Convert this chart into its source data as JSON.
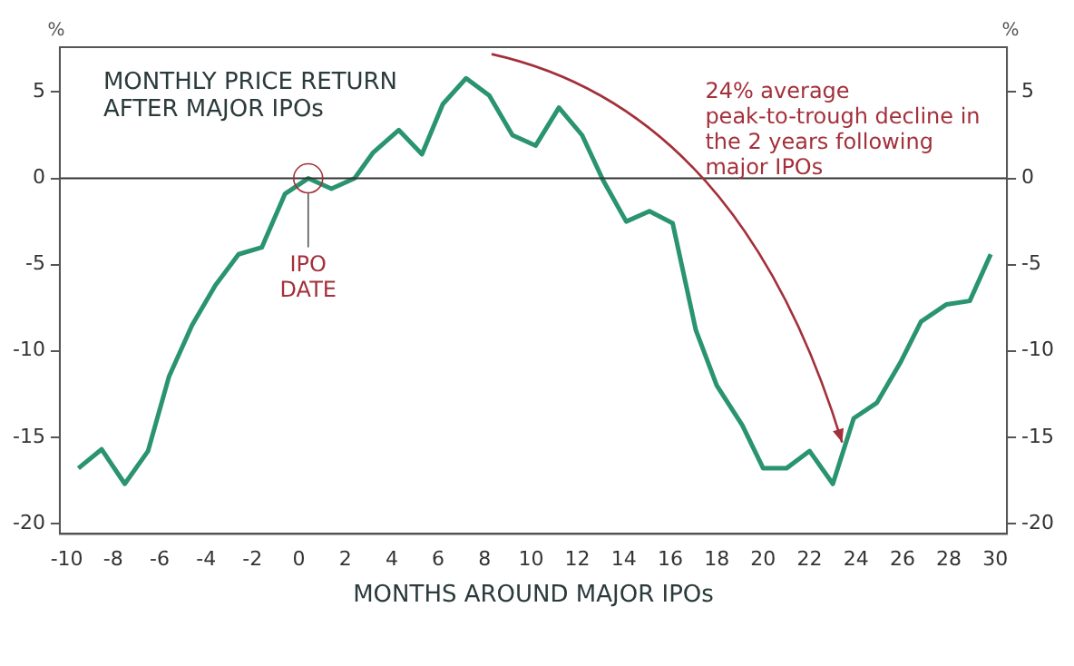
{
  "chart_data": {
    "type": "line",
    "title": "MONTHLY PRICE RETURN AFTER MAJOR IPOs",
    "xlabel": "MONTHS AROUND MAJOR IPOs",
    "ylabel": "%",
    "y2label": "%",
    "x": [
      -9.5,
      -8.5,
      -7.5,
      -6.5,
      -5.6,
      -4.6,
      -3.6,
      -2.6,
      -1.6,
      -0.6,
      0.4,
      1.4,
      2.4,
      3.2,
      4.3,
      5.3,
      6.2,
      7.2,
      8.2,
      9.2,
      10.2,
      11.2,
      12.2,
      13.1,
      14.1,
      15.1,
      16.1,
      17.1,
      18.0,
      19.1,
      20.0,
      21.0,
      22.0,
      23.0,
      23.9,
      24.9,
      25.9,
      26.8,
      27.9,
      28.9,
      29.8
    ],
    "series": [
      {
        "color": "#2a9470",
        "values": [
          -16.8,
          -15.7,
          -17.7,
          -15.8,
          -11.5,
          -8.5,
          -6.2,
          -4.4,
          -4.0,
          -0.9,
          0,
          -0.6,
          0,
          1.5,
          2.8,
          1.4,
          4.3,
          5.8,
          4.8,
          2.5,
          1.9,
          4.1,
          2.5,
          -0.1,
          -2.5,
          -1.9,
          -2.6,
          -8.8,
          -12.0,
          -14.3,
          -16.8,
          -16.8,
          -15.8,
          -17.7,
          -13.9,
          -13.0,
          -10.7,
          -8.3,
          -7.3,
          -7.1,
          -4.4
        ]
      }
    ],
    "xlim": [
      -10.3,
      30.5
    ],
    "xticks": [
      -10,
      -8,
      -6,
      -4,
      -2,
      0,
      2,
      4,
      6,
      8,
      10,
      12,
      14,
      16,
      18,
      20,
      22,
      24,
      26,
      28,
      30
    ],
    "ylim": [
      -20.6,
      7.6
    ],
    "yticks": [
      -20,
      -15,
      -10,
      -5,
      0,
      5
    ],
    "y2lim": [
      -20.6,
      7.6
    ],
    "y2ticks": [
      -20,
      -15,
      -10,
      -5,
      0,
      5
    ],
    "ref_lines": [
      {
        "axis": "y",
        "value": 0,
        "color": "#333333"
      }
    ],
    "annotations": [
      {
        "text": "IPO DATE",
        "x": 0.4,
        "y": 0
      },
      "24% average peak-to-trough decline in the 2 years following major IPOs"
    ],
    "grid": false,
    "legend": false,
    "marker": "none",
    "line_style": "solid"
  }
}
